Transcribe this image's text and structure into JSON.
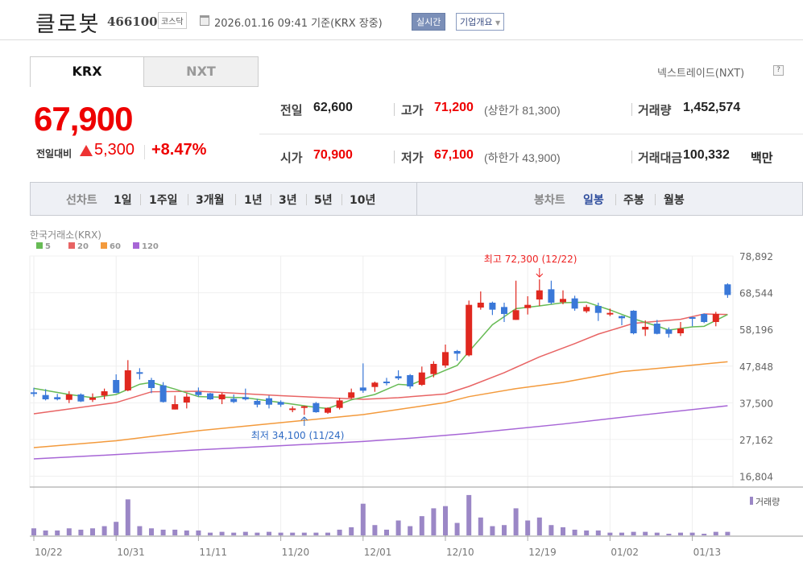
{
  "header": {
    "name": "클로봇",
    "code": "466100",
    "market": "코스닥",
    "datetime": "2026.01.16 09:41",
    "basis": "기준(KRX 장중)",
    "realtime_btn": "실시간",
    "company_btn": "기업개요"
  },
  "tabs": [
    {
      "label": "KRX",
      "active": true
    },
    {
      "label": "NXT",
      "active": false
    }
  ],
  "nxt_link": "넥스트레이드(NXT)",
  "help_icon": "?",
  "quote": {
    "price": "67,900",
    "change_label": "전일대비",
    "change": "5,300",
    "change_pct": "+8.47%",
    "prev_label": "전일",
    "prev": "62,600",
    "high_label": "고가",
    "high": "71,200",
    "upper_limit": "(상한가 81,300)",
    "volume_label": "거래량",
    "volume": "1,452,574",
    "open_label": "시가",
    "open": "70,900",
    "low_label": "저가",
    "low": "67,100",
    "lower_limit": "(하한가 43,900)",
    "amount_label": "거래대금",
    "amount": "100,332",
    "amount_unit": "백만"
  },
  "line_chart": {
    "label": "선차트",
    "periods": [
      "1일",
      "1주일",
      "3개월",
      "1년",
      "3년",
      "5년",
      "10년"
    ]
  },
  "candle_chart": {
    "label": "봉차트",
    "periods": [
      "일봉",
      "주봉",
      "월봉"
    ],
    "active": "일봉"
  },
  "colors": {
    "up": "#e0281f",
    "down": "#3a78d8",
    "ma5": "#67bb55",
    "ma20": "#e86464",
    "ma60": "#f39a3c",
    "ma120": "#a766d6",
    "volume": "#9b87c6"
  },
  "chart_data": {
    "type": "candlestick",
    "title": "한국거래소(KRX)",
    "legend": [
      "5",
      "20",
      "60",
      "120"
    ],
    "y_ticks": [
      78892,
      68544,
      58196,
      47848,
      37500,
      27162,
      16804
    ],
    "y_tick_labels": [
      "78,892",
      "68,544",
      "58,196",
      "47,848",
      "37,500",
      "27,162",
      "16,804"
    ],
    "x_tick_labels": [
      {
        "i": 0,
        "label": "10/22"
      },
      {
        "i": 7,
        "label": "10/31"
      },
      {
        "i": 14,
        "label": "11/11"
      },
      {
        "i": 21,
        "label": "11/20"
      },
      {
        "i": 28,
        "label": "12/01"
      },
      {
        "i": 35,
        "label": "12/10"
      },
      {
        "i": 42,
        "label": "12/19"
      },
      {
        "i": 49,
        "label": "01/02"
      },
      {
        "i": 56,
        "label": "01/13"
      }
    ],
    "ohlc": [
      [
        40450,
        41740,
        39240,
        40000
      ],
      [
        39690,
        41360,
        38180,
        38480
      ],
      [
        39090,
        40000,
        38180,
        38480
      ],
      [
        38330,
        40750,
        37420,
        39850
      ],
      [
        39850,
        40150,
        37730,
        37880
      ],
      [
        38330,
        40150,
        37730,
        38940
      ],
      [
        39540,
        41510,
        38480,
        40750
      ],
      [
        43930,
        45520,
        40220,
        40300
      ],
      [
        40980,
        49530,
        40750,
        46660
      ],
      [
        46130,
        47260,
        44080,
        45750
      ],
      [
        43930,
        44540,
        40220,
        41660
      ],
      [
        42420,
        43330,
        37580,
        37730
      ],
      [
        35610,
        39540,
        35610,
        37120
      ],
      [
        37580,
        40150,
        35910,
        39240
      ],
      [
        40600,
        41810,
        39240,
        39690
      ],
      [
        40150,
        40300,
        38330,
        38480
      ],
      [
        38480,
        40300,
        37120,
        39850
      ],
      [
        38630,
        39850,
        37420,
        37730
      ],
      [
        39090,
        41510,
        38180,
        38480
      ],
      [
        38030,
        38630,
        36210,
        36970
      ],
      [
        38790,
        39540,
        35910,
        36970
      ],
      [
        37730,
        38180,
        36360,
        36970
      ],
      [
        35460,
        36520,
        34850,
        35910
      ],
      [
        36360,
        36670,
        34100,
        36520
      ],
      [
        37420,
        37730,
        34700,
        34850
      ],
      [
        34700,
        36210,
        34400,
        36060
      ],
      [
        36060,
        38940,
        35610,
        38180
      ],
      [
        38940,
        41510,
        38630,
        40450
      ],
      [
        41810,
        48620,
        40300,
        40900
      ],
      [
        41960,
        43480,
        40600,
        43180
      ],
      [
        43480,
        44540,
        42420,
        43180
      ],
      [
        44990,
        46660,
        43930,
        44390
      ],
      [
        45300,
        45600,
        41510,
        42120
      ],
      [
        42570,
        47720,
        42270,
        46050
      ],
      [
        45600,
        49230,
        44690,
        48470
      ],
      [
        48020,
        53920,
        47410,
        51800
      ],
      [
        52110,
        52410,
        49380,
        51350
      ],
      [
        50890,
        66330,
        50590,
        65120
      ],
      [
        64360,
        68900,
        63760,
        65730
      ],
      [
        65730,
        66030,
        62250,
        63760
      ],
      [
        64510,
        65730,
        60280,
        62550
      ],
      [
        60880,
        71930,
        60880,
        63610
      ],
      [
        64210,
        67540,
        62400,
        65120
      ],
      [
        66630,
        72300,
        64820,
        69210
      ],
      [
        69510,
        71930,
        65270,
        65730
      ],
      [
        65880,
        69210,
        65270,
        66790
      ],
      [
        66940,
        67690,
        63460,
        64060
      ],
      [
        63300,
        65120,
        62850,
        64510
      ],
      [
        64820,
        65730,
        60580,
        62850
      ],
      [
        62700,
        64060,
        61940,
        62850
      ],
      [
        61940,
        62090,
        59370,
        61340
      ],
      [
        63460,
        63610,
        56800,
        57100
      ],
      [
        58160,
        60730,
        56340,
        58920
      ],
      [
        59820,
        60880,
        56800,
        56950
      ],
      [
        58160,
        58760,
        55890,
        56950
      ],
      [
        57100,
        60280,
        56340,
        58460
      ],
      [
        61640,
        61790,
        59070,
        61190
      ],
      [
        62550,
        62700,
        59980,
        60280
      ],
      [
        60280,
        63150,
        59070,
        62550
      ],
      [
        70900,
        71200,
        67100,
        67900
      ]
    ],
    "ma": {
      "5": [
        [
          0,
          41590
        ],
        [
          3,
          39850
        ],
        [
          5,
          38940
        ],
        [
          7,
          39850
        ],
        [
          9,
          42720
        ],
        [
          10,
          43250
        ],
        [
          12,
          41360
        ],
        [
          14,
          39240
        ],
        [
          18,
          38940
        ],
        [
          21,
          37580
        ],
        [
          24,
          36210
        ],
        [
          25,
          35910
        ],
        [
          27,
          38330
        ],
        [
          29,
          39850
        ],
        [
          31,
          42720
        ],
        [
          32,
          42490
        ],
        [
          35,
          46660
        ],
        [
          36,
          48020
        ],
        [
          37,
          51950
        ],
        [
          38,
          55740
        ],
        [
          39,
          59520
        ],
        [
          41,
          64060
        ],
        [
          43,
          64820
        ],
        [
          45,
          65730
        ],
        [
          47,
          65880
        ],
        [
          49,
          63680
        ],
        [
          51,
          61190
        ],
        [
          53,
          59140
        ],
        [
          54,
          58010
        ],
        [
          56,
          58920
        ],
        [
          57,
          59070
        ],
        [
          59,
          62400
        ]
      ],
      "20": [
        [
          0,
          34400
        ],
        [
          7,
          37570
        ],
        [
          10,
          40600
        ],
        [
          14,
          40750
        ],
        [
          21,
          39500
        ],
        [
          28,
          38480
        ],
        [
          31,
          38940
        ],
        [
          35,
          40000
        ],
        [
          37,
          42120
        ],
        [
          40,
          46000
        ],
        [
          43,
          50440
        ],
        [
          46,
          54200
        ],
        [
          48,
          56870
        ],
        [
          51,
          59900
        ],
        [
          55,
          61040
        ],
        [
          57,
          62550
        ],
        [
          59,
          62400
        ]
      ],
      "60": [
        [
          0,
          24860
        ],
        [
          7,
          26800
        ],
        [
          14,
          29630
        ],
        [
          21,
          31900
        ],
        [
          28,
          34170
        ],
        [
          32,
          36100
        ],
        [
          35,
          37580
        ],
        [
          37,
          39240
        ],
        [
          41,
          41500
        ],
        [
          45,
          43250
        ],
        [
          50,
          46280
        ],
        [
          55,
          47790
        ],
        [
          59,
          49080
        ]
      ],
      "120": [
        [
          0,
          21680
        ],
        [
          7,
          22900
        ],
        [
          14,
          24250
        ],
        [
          21,
          25400
        ],
        [
          28,
          26600
        ],
        [
          32,
          27500
        ],
        [
          37,
          28870
        ],
        [
          45,
          31520
        ],
        [
          51,
          33790
        ],
        [
          59,
          36670
        ]
      ]
    },
    "volume_k": [
      2910,
      2020,
      2020,
      2910,
      2350,
      2910,
      3810,
      5600,
      14900,
      3810,
      2910,
      2350,
      2350,
      2020,
      2020,
      1120,
      1460,
      1120,
      1460,
      1120,
      1460,
      1120,
      1120,
      1120,
      1120,
      1120,
      2350,
      3360,
      13100,
      4260,
      2350,
      6160,
      3810,
      7950,
      11200,
      12100,
      5150,
      16700,
      7390,
      3810,
      4260,
      11200,
      6160,
      7390,
      4260,
      3360,
      2350,
      2020,
      2020,
      1120,
      1120,
      1460,
      1460,
      1120,
      670,
      1120,
      1120,
      670,
      1460,
      1453
    ],
    "volume_label": "거래량",
    "annotations": {
      "high": {
        "text": "최고 72,300 (12/22)",
        "i": 43,
        "value": 72300
      },
      "low": {
        "text": "최저 34,100 (11/24)",
        "i": 23,
        "value": 34100
      }
    }
  }
}
